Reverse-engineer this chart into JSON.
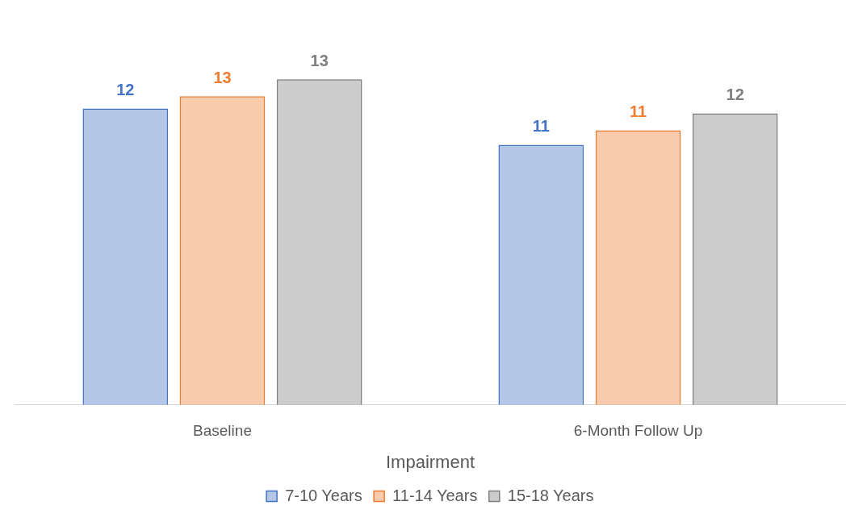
{
  "chart_data": {
    "type": "bar",
    "xlabel": "Impairment",
    "categories": [
      "Baseline",
      "6-Month Follow Up"
    ],
    "series": [
      {
        "name": "7-10 Years",
        "color": "#4472c4",
        "values": [
          12.2,
          10.7
        ],
        "value_labels": [
          "12",
          "11"
        ]
      },
      {
        "name": "11-14 Years",
        "color": "#ed7d31",
        "values": [
          12.7,
          11.3
        ],
        "value_labels": [
          "13",
          "11"
        ]
      },
      {
        "name": "15-18 Years",
        "color": "#7f7f7f",
        "values": [
          13.4,
          12.0
        ],
        "value_labels": [
          "13",
          "12"
        ]
      }
    ],
    "grid": false,
    "legend": "bottom"
  }
}
